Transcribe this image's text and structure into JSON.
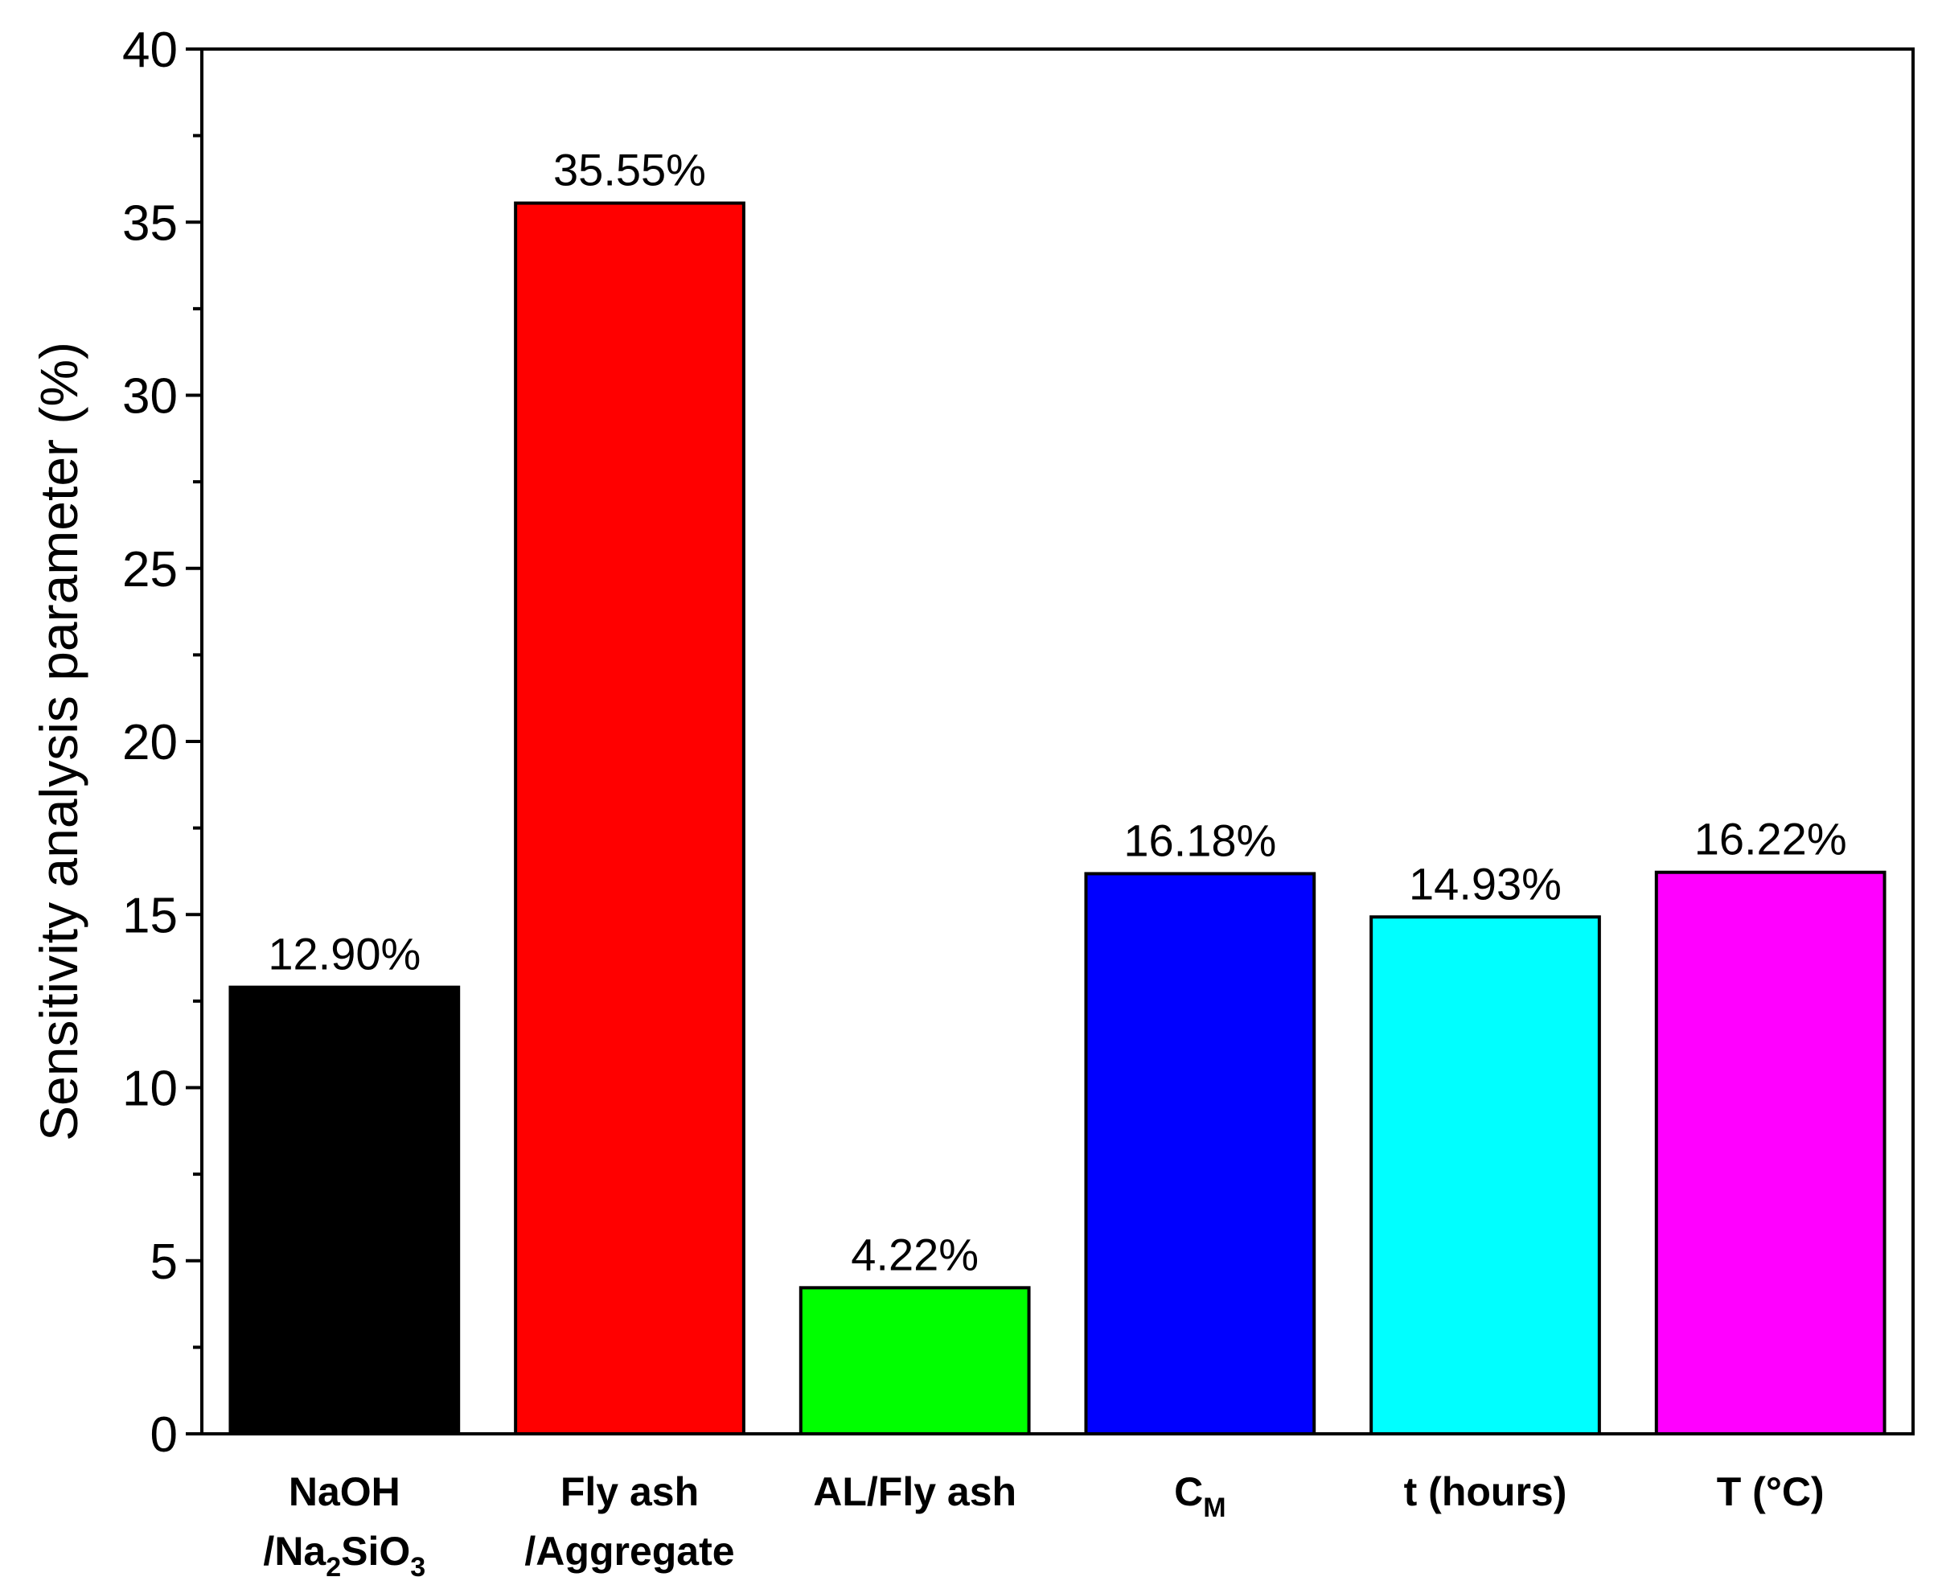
{
  "chart_data": {
    "type": "bar",
    "ylabel": "Sensitivity analysis parameter (%)",
    "xlabel": "",
    "ylim": [
      0,
      40
    ],
    "yticks": [
      "0",
      "5",
      "10",
      "15",
      "20",
      "25",
      "30",
      "35",
      "40"
    ],
    "grid": false,
    "categories": [
      {
        "lines": [
          [
            {
              "t": "NaOH"
            }
          ],
          [
            {
              "t": "/Na"
            },
            {
              "t": "2",
              "sub": true
            },
            {
              "t": "SiO"
            },
            {
              "t": "3",
              "sub": true
            }
          ]
        ]
      },
      {
        "lines": [
          [
            {
              "t": "Fly ash"
            }
          ],
          [
            {
              "t": "/Aggregate"
            }
          ]
        ]
      },
      {
        "lines": [
          [
            {
              "t": "AL/Fly ash"
            }
          ]
        ]
      },
      {
        "lines": [
          [
            {
              "t": "C"
            },
            {
              "t": "M",
              "sub": true
            }
          ]
        ]
      },
      {
        "lines": [
          [
            {
              "t": "t (hours)"
            }
          ]
        ]
      },
      {
        "lines": [
          [
            {
              "t": "T (°C)"
            }
          ]
        ]
      }
    ],
    "values": [
      12.9,
      35.55,
      4.22,
      16.18,
      14.93,
      16.22
    ],
    "data_labels": [
      "12.90%",
      "35.55%",
      "4.22%",
      "16.18%",
      "14.93%",
      "16.22%"
    ],
    "colors": [
      "#000000",
      "#ff0000",
      "#00ff00",
      "#0000ff",
      "#00ffff",
      "#ff00ff"
    ]
  }
}
